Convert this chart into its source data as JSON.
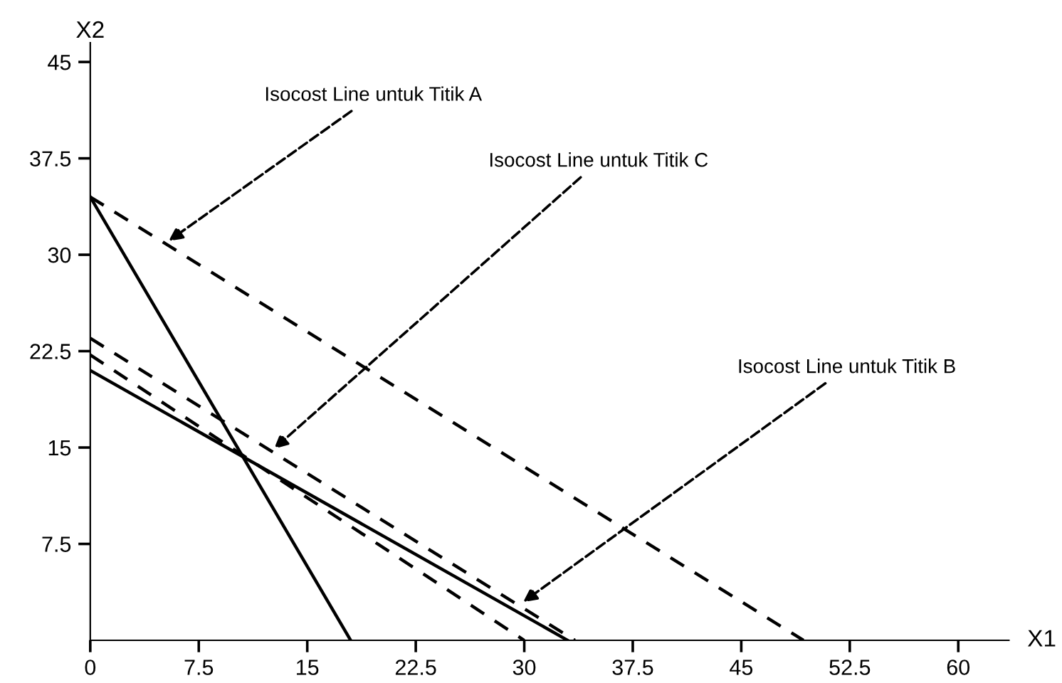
{
  "chart_data": {
    "type": "line",
    "xlabel": "X1",
    "ylabel": "X2",
    "xlim": [
      0,
      63.5
    ],
    "ylim": [
      0,
      46.5
    ],
    "xticks": [
      {
        "value": 0,
        "label": "0"
      },
      7.5,
      15,
      22.5,
      30,
      37.5,
      45,
      52.5,
      60
    ],
    "yticks": [
      7.5,
      15,
      22.5,
      30,
      37.5,
      45
    ],
    "grid": false,
    "legend": false,
    "marker": "none",
    "series": [
      {
        "color": "#000000",
        "line_style": "solid",
        "x": [
          0,
          18
        ],
        "values": [
          34.5,
          0
        ]
      },
      {
        "color": "#000000",
        "line_style": "solid",
        "x": [
          0,
          33
        ],
        "values": [
          21,
          0
        ]
      },
      {
        "color": "#000000",
        "line_style": "dashed",
        "x": [
          0,
          49.3
        ],
        "values": [
          34.5,
          0
        ]
      },
      {
        "color": "#000000",
        "line_style": "dashed",
        "x": [
          0,
          33.5
        ],
        "values": [
          23.5,
          0
        ]
      },
      {
        "color": "#000000",
        "line_style": "dashed",
        "x": [
          0,
          30
        ],
        "values": [
          22.2,
          0
        ]
      }
    ],
    "annotations": [
      {
        "text": "Isocost Line untuk Titik A",
        "x": 5.2,
        "y": 30.9
      },
      {
        "text": "Isocost Line untuk Titik C",
        "x": 12.5,
        "y": 14.7
      },
      {
        "text": "Isocost Line untuk Titik B",
        "x": 29.7,
        "y": 2.8
      }
    ]
  }
}
